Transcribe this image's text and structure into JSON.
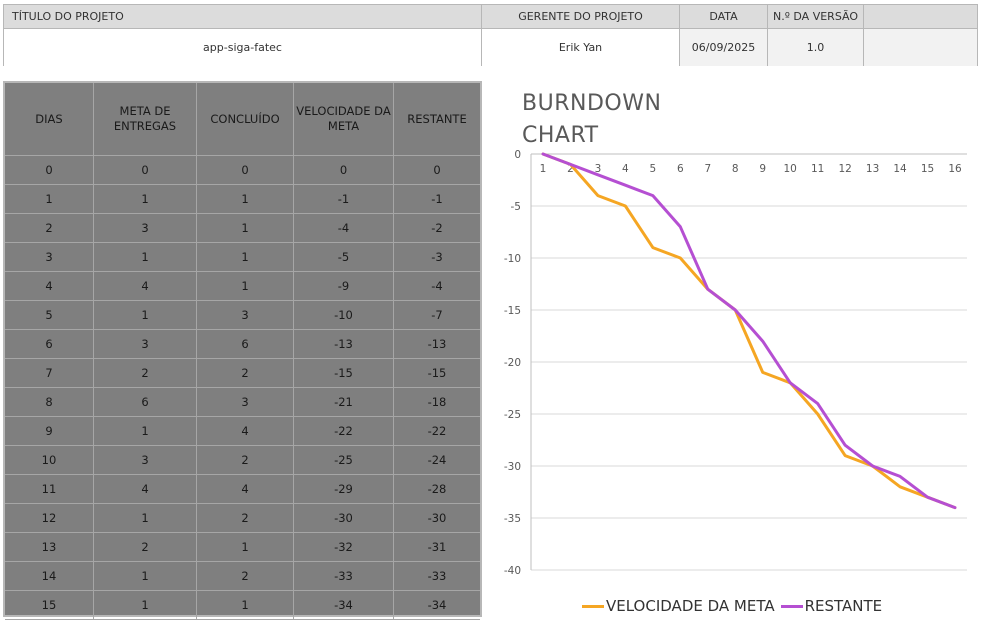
{
  "project": {
    "headers": [
      "TÍTULO DO PROJETO",
      "GERENTE DO PROJETO",
      "DATA",
      "N.º DA VERSÃO",
      ""
    ],
    "values": [
      "app-siga-fatec",
      "Erik Yan",
      "06/09/2025",
      "1.0",
      ""
    ]
  },
  "table": {
    "columns": [
      "DIAS",
      "META DE ENTREGAS",
      "CONCLUÍDO",
      "VELOCIDADE DA META",
      "RESTANTE"
    ],
    "rows": [
      [
        "0",
        "0",
        "0",
        "0",
        "0"
      ],
      [
        "1",
        "1",
        "1",
        "-1",
        "-1"
      ],
      [
        "2",
        "3",
        "1",
        "-4",
        "-2"
      ],
      [
        "3",
        "1",
        "1",
        "-5",
        "-3"
      ],
      [
        "4",
        "4",
        "1",
        "-9",
        "-4"
      ],
      [
        "5",
        "1",
        "3",
        "-10",
        "-7"
      ],
      [
        "6",
        "3",
        "6",
        "-13",
        "-13"
      ],
      [
        "7",
        "2",
        "2",
        "-15",
        "-15"
      ],
      [
        "8",
        "6",
        "3",
        "-21",
        "-18"
      ],
      [
        "9",
        "1",
        "4",
        "-22",
        "-22"
      ],
      [
        "10",
        "3",
        "2",
        "-25",
        "-24"
      ],
      [
        "11",
        "4",
        "4",
        "-29",
        "-28"
      ],
      [
        "12",
        "1",
        "2",
        "-30",
        "-30"
      ],
      [
        "13",
        "2",
        "1",
        "-32",
        "-31"
      ],
      [
        "14",
        "1",
        "2",
        "-33",
        "-33"
      ],
      [
        "15",
        "1",
        "1",
        "-34",
        "-34"
      ]
    ]
  },
  "chart_data": {
    "type": "line",
    "title": "BURNDOWN CHART",
    "x": [
      1,
      2,
      3,
      4,
      5,
      6,
      7,
      8,
      9,
      10,
      11,
      12,
      13,
      14,
      15,
      16
    ],
    "xticks": [
      "1",
      "2",
      "3",
      "4",
      "5",
      "6",
      "7",
      "8",
      "9",
      "10",
      "11",
      "12",
      "13",
      "14",
      "15",
      "16"
    ],
    "yticks": [
      "0",
      "-5",
      "-10",
      "-15",
      "-20",
      "-25",
      "-30",
      "-35",
      "-40"
    ],
    "ylim": [
      -40,
      0
    ],
    "grid": true,
    "legend": "bottom",
    "xaxis_position": "top",
    "series": [
      {
        "name": "VELOCIDADE DA META",
        "color": "#f5a623",
        "values": [
          0,
          -1,
          -4,
          -5,
          -9,
          -10,
          -13,
          -15,
          -21,
          -22,
          -25,
          -29,
          -30,
          -32,
          -33,
          -34
        ]
      },
      {
        "name": "RESTANTE",
        "color": "#b54fd2",
        "values": [
          0,
          -1,
          -2,
          -3,
          -4,
          -7,
          -13,
          -15,
          -18,
          -22,
          -24,
          -28,
          -30,
          -31,
          -33,
          -34
        ]
      }
    ]
  }
}
